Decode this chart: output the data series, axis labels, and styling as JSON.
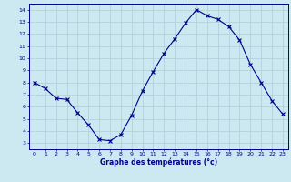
{
  "x": [
    0,
    1,
    2,
    3,
    4,
    5,
    6,
    7,
    8,
    9,
    10,
    11,
    12,
    13,
    14,
    15,
    16,
    17,
    18,
    19,
    20,
    21,
    22,
    23
  ],
  "y": [
    8.0,
    7.5,
    6.7,
    6.6,
    5.5,
    4.5,
    3.3,
    3.2,
    3.7,
    5.3,
    7.3,
    8.9,
    10.4,
    11.6,
    12.9,
    14.0,
    13.5,
    13.2,
    12.6,
    11.5,
    9.5,
    8.0,
    6.5,
    5.4
  ],
  "xlabel": "Graphe des températures (°c)",
  "xlim": [
    -0.5,
    23.5
  ],
  "ylim": [
    2.5,
    14.5
  ],
  "yticks": [
    3,
    4,
    5,
    6,
    7,
    8,
    9,
    10,
    11,
    12,
    13,
    14
  ],
  "xticks": [
    0,
    1,
    2,
    3,
    4,
    5,
    6,
    7,
    8,
    9,
    10,
    11,
    12,
    13,
    14,
    15,
    16,
    17,
    18,
    19,
    20,
    21,
    22,
    23
  ],
  "line_color": "#00008B",
  "marker_color": "#00008B",
  "bg_color": "#cce8f0",
  "grid_color": "#b0cdd8",
  "xlabel_color": "#00008B",
  "tick_color": "#00008B"
}
